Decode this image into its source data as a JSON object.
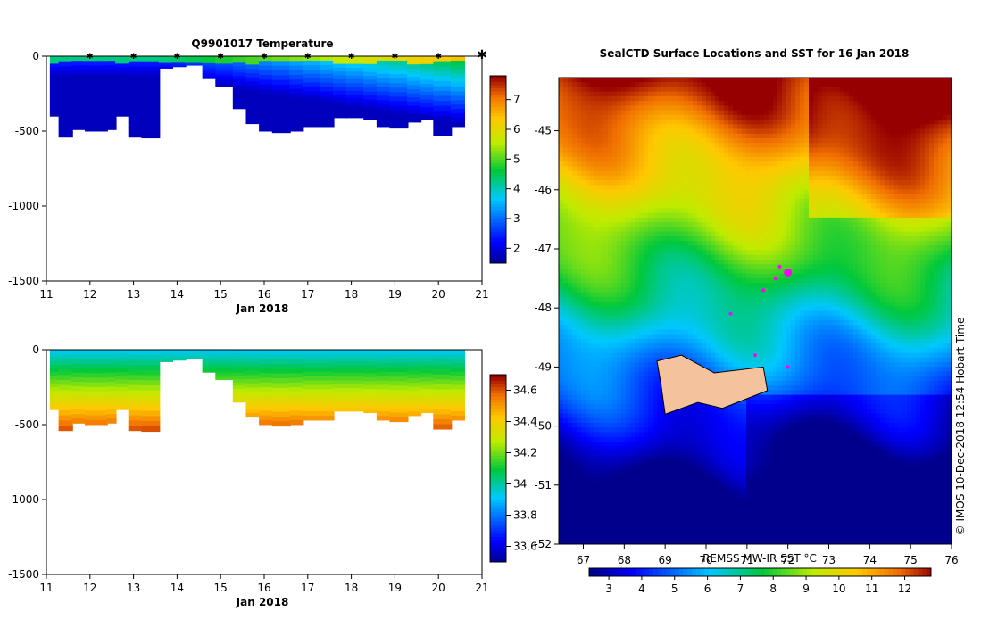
{
  "left_top": {
    "title": "Q9901017  Temperature",
    "xlabel": "Jan 2018",
    "x_ticks": [
      "11",
      "12",
      "13",
      "14",
      "15",
      "16",
      "17",
      "18",
      "19",
      "20",
      "21"
    ],
    "y_ticks": [
      "0",
      "-500",
      "-1000",
      "-1500"
    ],
    "colorbar_ticks": [
      "2",
      "3",
      "4",
      "5",
      "6",
      "7"
    ]
  },
  "left_bottom": {
    "xlabel": "Jan 2018",
    "x_ticks": [
      "11",
      "12",
      "13",
      "14",
      "15",
      "16",
      "17",
      "18",
      "19",
      "20",
      "21"
    ],
    "y_ticks": [
      "0",
      "-500",
      "-1000",
      "-1500"
    ],
    "colorbar_ticks": [
      "33.6",
      "33.8",
      "34",
      "34.2",
      "34.4",
      "34.6"
    ]
  },
  "map": {
    "title": "SealCTD Surface Locations and SST for 16 Jan 2018",
    "x_ticks": [
      "67",
      "68",
      "69",
      "70",
      "71",
      "72",
      "73",
      "74",
      "75",
      "76"
    ],
    "y_ticks": [
      "-45",
      "-46",
      "-47",
      "-48",
      "-49",
      "-50",
      "-51",
      "-52"
    ],
    "colorbar_label": "REMSS MW-IR SST °C",
    "colorbar_ticks": [
      "3",
      "4",
      "5",
      "6",
      "7",
      "8",
      "9",
      "10",
      "11",
      "12"
    ],
    "credit": "© IMOS 10-Dec-2018 12:54 Hobart Time"
  },
  "chart_data": [
    {
      "type": "heatmap",
      "title": "Q9901017  Temperature",
      "xlabel": "Jan 2018",
      "ylabel": "",
      "xlim": [
        11,
        21
      ],
      "ylim": [
        -1500,
        0
      ],
      "colorbar_range": [
        1.5,
        7.8
      ],
      "profiles": [
        {
          "day": 11.1,
          "depth": 400
        },
        {
          "day": 11.3,
          "depth": 540
        },
        {
          "day": 11.6,
          "depth": 490
        },
        {
          "day": 11.9,
          "depth": 500
        },
        {
          "day": 12.2,
          "depth": 500
        },
        {
          "day": 12.4,
          "depth": 490
        },
        {
          "day": 12.6,
          "depth": 400
        },
        {
          "day": 12.9,
          "depth": 540
        },
        {
          "day": 13.2,
          "depth": 545
        },
        {
          "day": 13.6,
          "depth": 80
        },
        {
          "day": 13.9,
          "depth": 70
        },
        {
          "day": 14.2,
          "depth": 60
        },
        {
          "day": 14.6,
          "depth": 150
        },
        {
          "day": 14.9,
          "depth": 200
        },
        {
          "day": 15.3,
          "depth": 350
        },
        {
          "day": 15.6,
          "depth": 450
        },
        {
          "day": 15.9,
          "depth": 500
        },
        {
          "day": 16.2,
          "depth": 510
        },
        {
          "day": 16.6,
          "depth": 500
        },
        {
          "day": 16.9,
          "depth": 470
        },
        {
          "day": 17.3,
          "depth": 470
        },
        {
          "day": 17.6,
          "depth": 410
        },
        {
          "day": 17.9,
          "depth": 410
        },
        {
          "day": 18.3,
          "depth": 420
        },
        {
          "day": 18.6,
          "depth": 470
        },
        {
          "day": 18.9,
          "depth": 480
        },
        {
          "day": 19.3,
          "depth": 440
        },
        {
          "day": 19.6,
          "depth": 420
        },
        {
          "day": 19.9,
          "depth": 530
        },
        {
          "day": 20.3,
          "depth": 470
        }
      ],
      "surface_markers": [
        12,
        13,
        14,
        15,
        16,
        17,
        18,
        19,
        20,
        21
      ]
    },
    {
      "type": "heatmap",
      "xlabel": "Jan 2018",
      "ylabel": "",
      "xlim": [
        11,
        21
      ],
      "ylim": [
        -1500,
        0
      ],
      "colorbar_range": [
        33.5,
        34.7
      ]
    },
    {
      "type": "heatmap",
      "title": "SealCTD Surface Locations and SST for 16 Jan 2018",
      "xlabel": "",
      "ylabel": "",
      "xlim": [
        66.4,
        76
      ],
      "ylim": [
        -52,
        -44.1
      ],
      "colorbar_label": "REMSS MW-IR SST °C",
      "colorbar_range": [
        2.4,
        12.8
      ],
      "seal_positions": [
        {
          "lon": 71.8,
          "lat": -47.3
        },
        {
          "lon": 72.0,
          "lat": -47.4
        },
        {
          "lon": 71.7,
          "lat": -47.5
        },
        {
          "lon": 71.4,
          "lat": -47.7
        },
        {
          "lon": 70.6,
          "lat": -48.1
        },
        {
          "lon": 71.2,
          "lat": -48.8
        },
        {
          "lon": 72.0,
          "lat": -49.0
        }
      ]
    }
  ]
}
